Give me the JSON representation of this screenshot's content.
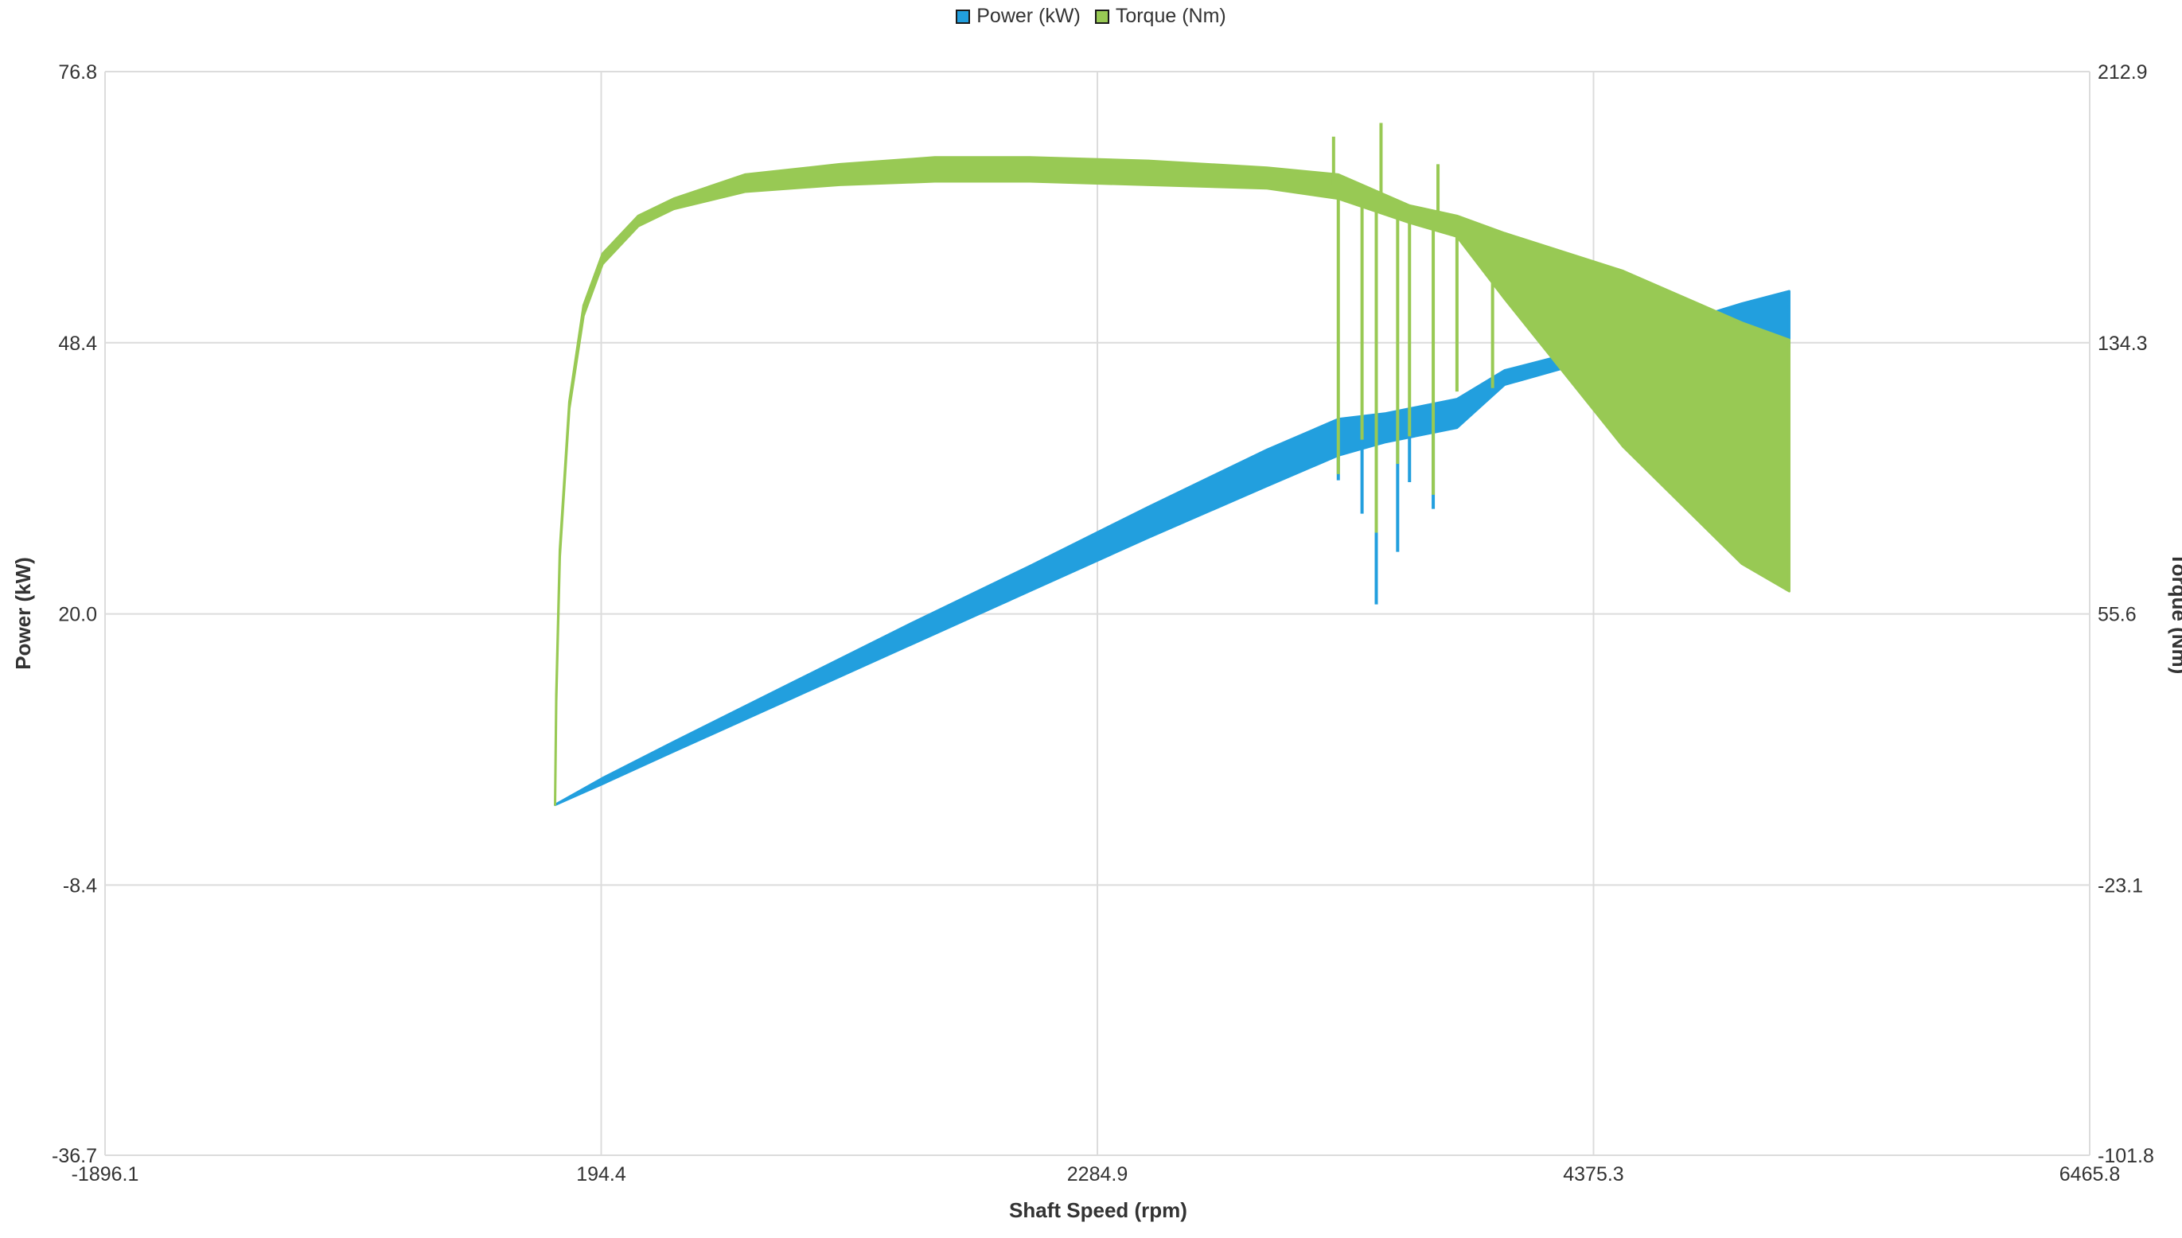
{
  "colors": {
    "power": "#229fde",
    "torque": "#98c954",
    "grid": "#dcdcdc",
    "axis_text": "#333333"
  },
  "chart_data": {
    "type": "line",
    "x_axis": {
      "label": "Shaft Speed (rpm)",
      "min": -1896.1,
      "max": 6465.8,
      "ticks": [
        "-1896.1",
        "194.4",
        "2284.9",
        "4375.3",
        "6465.8"
      ]
    },
    "y_axis_left": {
      "label": "Power (kW)",
      "min": -36.7,
      "max": 76.8,
      "ticks": [
        "76.8",
        "48.4",
        "20.0",
        "-8.4",
        "-36.7"
      ]
    },
    "y_axis_right": {
      "label": "Torque (Nm)",
      "min": -101.8,
      "max": 212.9,
      "ticks": [
        "212.9",
        "134.3",
        "55.6",
        "-23.1",
        "-101.8"
      ]
    },
    "grid": true,
    "legend_position": "top-center",
    "series": [
      {
        "name": "Power (kW)",
        "axis": "left",
        "color": "#229fde",
        "band_points": [
          {
            "x": 0,
            "lo": 0.0,
            "hi": 0.0
          },
          {
            "x": 200,
            "lo": 2.2,
            "hi": 2.8
          },
          {
            "x": 500,
            "lo": 5.6,
            "hi": 6.6
          },
          {
            "x": 1000,
            "lo": 11.2,
            "hi": 12.8
          },
          {
            "x": 1500,
            "lo": 16.8,
            "hi": 19.0
          },
          {
            "x": 2000,
            "lo": 22.4,
            "hi": 25.0
          },
          {
            "x": 2500,
            "lo": 28.0,
            "hi": 31.2
          },
          {
            "x": 3000,
            "lo": 33.4,
            "hi": 37.2
          },
          {
            "x": 3300,
            "lo": 36.6,
            "hi": 40.4
          },
          {
            "x": 3500,
            "lo": 38.0,
            "hi": 41.0
          },
          {
            "x": 3800,
            "lo": 39.5,
            "hi": 42.5
          },
          {
            "x": 4000,
            "lo": 44.0,
            "hi": 45.5
          },
          {
            "x": 4500,
            "lo": 47.5,
            "hi": 48.7
          },
          {
            "x": 5000,
            "lo": 48.0,
            "hi": 52.5
          },
          {
            "x": 5200,
            "lo": 48.0,
            "hi": 53.8
          }
        ],
        "spikes": [
          {
            "x": 3300,
            "y": 34.0
          },
          {
            "x": 3400,
            "y": 30.5
          },
          {
            "x": 3460,
            "y": 21.0
          },
          {
            "x": 3550,
            "y": 26.5
          },
          {
            "x": 3600,
            "y": 33.8
          },
          {
            "x": 3700,
            "y": 31.0
          }
        ]
      },
      {
        "name": "Torque (Nm)",
        "axis": "right",
        "color": "#98c954",
        "band_points": [
          {
            "x": 0,
            "lo": 0.0,
            "hi": 0.0
          },
          {
            "x": 5,
            "lo": 30.0,
            "hi": 32.0
          },
          {
            "x": 20,
            "lo": 72.0,
            "hi": 74.0
          },
          {
            "x": 60,
            "lo": 115.0,
            "hi": 117.0
          },
          {
            "x": 120,
            "lo": 142.0,
            "hi": 145.0
          },
          {
            "x": 200,
            "lo": 157.0,
            "hi": 160.0
          },
          {
            "x": 350,
            "lo": 168.0,
            "hi": 171.0
          },
          {
            "x": 500,
            "lo": 173.0,
            "hi": 176.0
          },
          {
            "x": 800,
            "lo": 178.0,
            "hi": 183.0
          },
          {
            "x": 1200,
            "lo": 180.0,
            "hi": 186.0
          },
          {
            "x": 1600,
            "lo": 181.0,
            "hi": 188.0
          },
          {
            "x": 2000,
            "lo": 181.0,
            "hi": 188.0
          },
          {
            "x": 2500,
            "lo": 180.0,
            "hi": 187.0
          },
          {
            "x": 3000,
            "lo": 179.0,
            "hi": 185.0
          },
          {
            "x": 3300,
            "lo": 176.0,
            "hi": 183.0
          },
          {
            "x": 3600,
            "lo": 169.0,
            "hi": 174.0
          },
          {
            "x": 3800,
            "lo": 165.0,
            "hi": 171.0
          },
          {
            "x": 4000,
            "lo": 147.0,
            "hi": 166.0
          },
          {
            "x": 4500,
            "lo": 104.0,
            "hi": 155.0
          },
          {
            "x": 5000,
            "lo": 70.0,
            "hi": 140.0
          },
          {
            "x": 5200,
            "lo": 62.0,
            "hi": 135.0
          }
        ],
        "spikes": [
          {
            "x": 3280,
            "y": 194.0
          },
          {
            "x": 3300,
            "y": 96.0
          },
          {
            "x": 3400,
            "y": 106.0
          },
          {
            "x": 3460,
            "y": 79.0
          },
          {
            "x": 3480,
            "y": 198.0
          },
          {
            "x": 3550,
            "y": 99.0
          },
          {
            "x": 3600,
            "y": 107.0
          },
          {
            "x": 3700,
            "y": 90.0
          },
          {
            "x": 3720,
            "y": 186.0
          },
          {
            "x": 3800,
            "y": 120.0
          },
          {
            "x": 3950,
            "y": 121.0
          }
        ]
      }
    ]
  }
}
